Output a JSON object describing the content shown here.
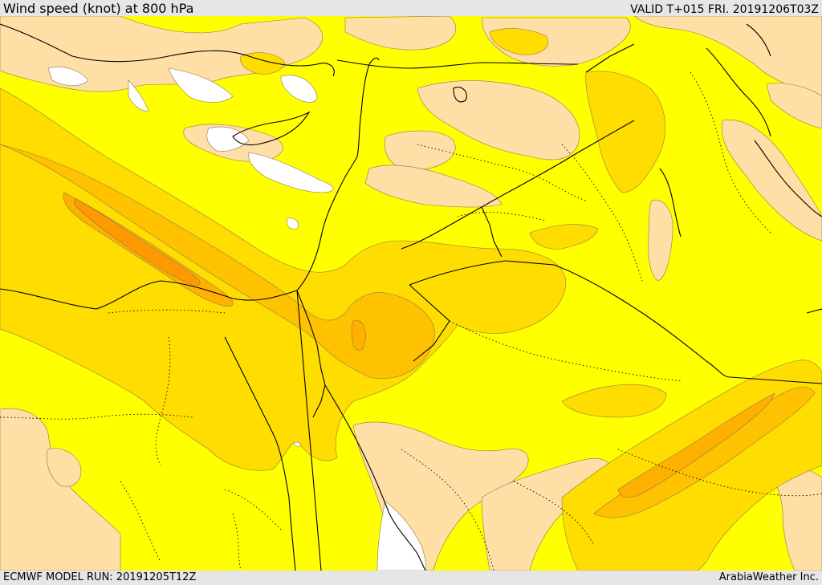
{
  "header": {
    "title": "Wind speed (knot) at 800 hPa",
    "valid": "VALID T+015 FRI. 20191206T03Z"
  },
  "footer": {
    "model_run": "ECMWF MODEL RUN: 20191205T12Z",
    "credit": "ArabiaWeather Inc."
  },
  "colors": {
    "calm": "#ffffff",
    "light": "#ffdfa5",
    "base": "#ffff00",
    "moderate": "#ffdd00",
    "fresh": "#ffc200",
    "strong": "#ffb100",
    "very_strong": "#ff9900",
    "boundary": "#000000"
  }
}
